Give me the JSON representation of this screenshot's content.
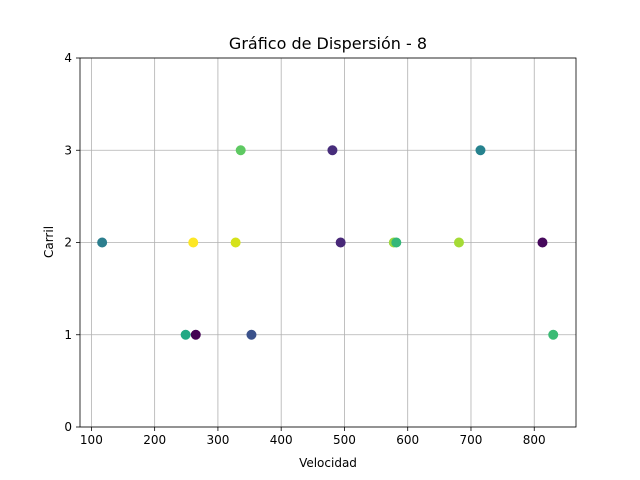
{
  "chart_data": {
    "type": "scatter",
    "title": "Gráfico de Dispersión -  8",
    "xlabel": "Velocidad",
    "ylabel": "Carril",
    "xlim": [
      82,
      866
    ],
    "ylim": [
      0,
      4
    ],
    "xticks": [
      100,
      200,
      300,
      400,
      500,
      600,
      700,
      800
    ],
    "yticks": [
      0,
      1,
      2,
      3,
      4
    ],
    "grid": true,
    "colormap": "viridis",
    "points": [
      {
        "x": 117,
        "y": 2,
        "color": "#2c7e8e"
      },
      {
        "x": 249,
        "y": 1,
        "color": "#22a884"
      },
      {
        "x": 261,
        "y": 2,
        "color": "#fde725"
      },
      {
        "x": 265,
        "y": 1,
        "color": "#440154"
      },
      {
        "x": 328,
        "y": 2,
        "color": "#d5e21a"
      },
      {
        "x": 336,
        "y": 3,
        "color": "#5ec962"
      },
      {
        "x": 353,
        "y": 1,
        "color": "#3b528b"
      },
      {
        "x": 481,
        "y": 3,
        "color": "#472d7b"
      },
      {
        "x": 494,
        "y": 2,
        "color": "#482878"
      },
      {
        "x": 578,
        "y": 2,
        "color": "#9bd93c"
      },
      {
        "x": 582,
        "y": 2,
        "color": "#35b779"
      },
      {
        "x": 681,
        "y": 2,
        "color": "#a5db36"
      },
      {
        "x": 715,
        "y": 3,
        "color": "#26828e"
      },
      {
        "x": 813,
        "y": 2,
        "color": "#46085c"
      },
      {
        "x": 830,
        "y": 1,
        "color": "#3bbb75"
      }
    ]
  }
}
